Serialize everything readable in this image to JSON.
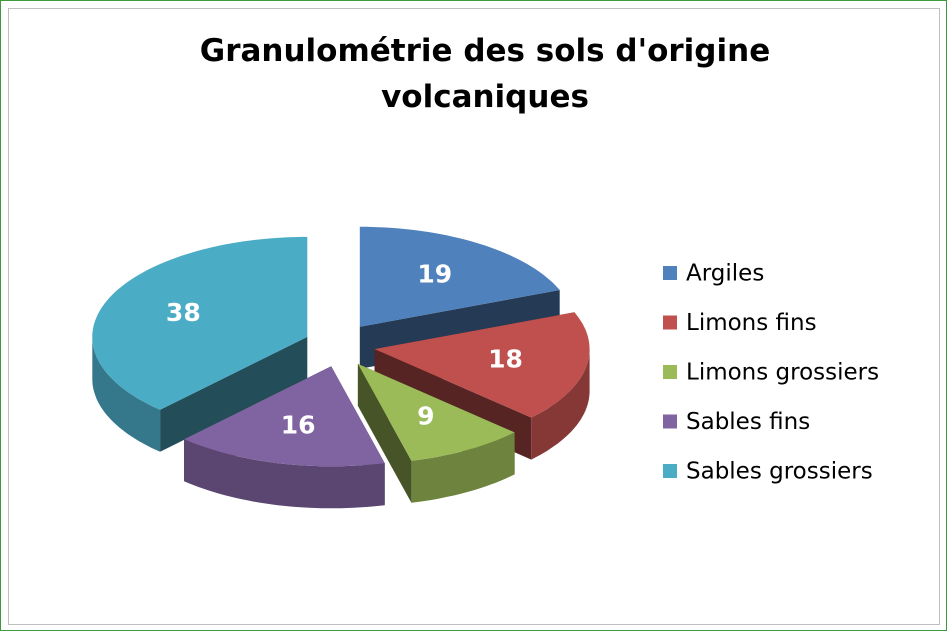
{
  "chart_data": {
    "type": "pie3d",
    "title": "Granulométrie des sols d'origine volcaniques",
    "categories": [
      "Argiles",
      "Limons fins",
      "Limons grossiers",
      "Sables fins",
      "Sables grossiers"
    ],
    "values": [
      19,
      18,
      9,
      16,
      38
    ],
    "colors": [
      "#4f81bd",
      "#c0504d",
      "#9bbb59",
      "#8064a2",
      "#4bacc6"
    ],
    "legend": "right"
  }
}
